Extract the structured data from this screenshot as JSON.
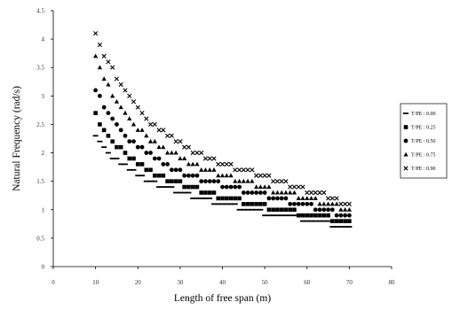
{
  "chart_data": {
    "type": "scatter",
    "title": "",
    "xlabel": "Length of free span (m)",
    "ylabel": "Natural Frequency (rad/s)",
    "xlim": [
      0,
      80
    ],
    "ylim": [
      0,
      4.5
    ],
    "xticks": [
      "0",
      "10",
      "20",
      "30",
      "40",
      "50",
      "60",
      "70",
      "80"
    ],
    "yticks": [
      "0",
      "0.5",
      "1",
      "1.5",
      "2",
      "2.5",
      "3",
      "3.5",
      "4",
      "4.5"
    ],
    "grid": false,
    "legend_position": "right",
    "x": [
      10,
      11,
      12,
      13,
      14,
      15,
      16,
      17,
      18,
      19,
      20,
      21,
      22,
      23,
      24,
      25,
      26,
      27,
      28,
      29,
      30,
      31,
      32,
      33,
      34,
      35,
      36,
      37,
      38,
      39,
      40,
      41,
      42,
      43,
      44,
      45,
      46,
      47,
      48,
      49,
      50,
      51,
      52,
      53,
      54,
      55,
      56,
      57,
      58,
      59,
      60,
      61,
      62,
      63,
      64,
      65,
      66,
      67,
      68,
      69,
      70
    ],
    "series": [
      {
        "name": "T/PE : 0.00",
        "marker": "dash",
        "values": [
          2.3,
          2.2,
          2.1,
          2.0,
          1.9,
          1.9,
          1.8,
          1.8,
          1.7,
          1.7,
          1.6,
          1.6,
          1.5,
          1.5,
          1.5,
          1.4,
          1.4,
          1.4,
          1.4,
          1.3,
          1.3,
          1.3,
          1.3,
          1.2,
          1.2,
          1.2,
          1.2,
          1.2,
          1.1,
          1.1,
          1.1,
          1.1,
          1.1,
          1.1,
          1.0,
          1.0,
          1.0,
          1.0,
          1.0,
          1.0,
          0.9,
          0.9,
          0.9,
          0.9,
          0.9,
          0.9,
          0.9,
          0.9,
          0.9,
          0.8,
          0.8,
          0.8,
          0.8,
          0.8,
          0.8,
          0.8,
          0.7,
          0.7,
          0.7,
          0.7,
          0.7
        ]
      },
      {
        "name": "T/PE : 0.25",
        "marker": "square",
        "values": [
          2.7,
          2.5,
          2.4,
          2.3,
          2.2,
          2.1,
          2.1,
          2.0,
          1.9,
          1.9,
          1.8,
          1.8,
          1.7,
          1.7,
          1.6,
          1.6,
          1.6,
          1.5,
          1.5,
          1.5,
          1.5,
          1.4,
          1.4,
          1.4,
          1.4,
          1.3,
          1.3,
          1.3,
          1.3,
          1.2,
          1.2,
          1.2,
          1.2,
          1.2,
          1.2,
          1.1,
          1.1,
          1.1,
          1.1,
          1.1,
          1.1,
          1.0,
          1.0,
          1.0,
          1.0,
          1.0,
          1.0,
          1.0,
          0.9,
          0.9,
          0.9,
          0.9,
          0.9,
          0.9,
          0.9,
          0.9,
          0.8,
          0.8,
          0.8,
          0.8,
          0.8
        ]
      },
      {
        "name": "T/PE : 0.50",
        "marker": "circle",
        "values": [
          3.1,
          3.0,
          2.8,
          2.7,
          2.6,
          2.5,
          2.4,
          2.3,
          2.2,
          2.2,
          2.1,
          2.1,
          2.0,
          2.0,
          1.9,
          1.9,
          1.8,
          1.8,
          1.7,
          1.7,
          1.7,
          1.6,
          1.6,
          1.6,
          1.6,
          1.5,
          1.5,
          1.5,
          1.5,
          1.5,
          1.4,
          1.4,
          1.4,
          1.4,
          1.4,
          1.3,
          1.3,
          1.3,
          1.3,
          1.3,
          1.3,
          1.2,
          1.2,
          1.2,
          1.2,
          1.2,
          1.1,
          1.1,
          1.1,
          1.1,
          1.1,
          1.1,
          1.0,
          1.0,
          1.0,
          1.0,
          1.0,
          0.9,
          0.9,
          0.9,
          0.9
        ]
      },
      {
        "name": "T/PE : 0.75",
        "marker": "triangle",
        "values": [
          3.7,
          3.5,
          3.3,
          3.2,
          3.0,
          2.9,
          2.8,
          2.7,
          2.6,
          2.5,
          2.4,
          2.4,
          2.3,
          2.2,
          2.2,
          2.1,
          2.1,
          2.0,
          2.0,
          2.0,
          1.9,
          1.9,
          1.8,
          1.8,
          1.8,
          1.7,
          1.7,
          1.7,
          1.7,
          1.6,
          1.6,
          1.6,
          1.6,
          1.5,
          1.5,
          1.5,
          1.5,
          1.5,
          1.4,
          1.4,
          1.4,
          1.4,
          1.3,
          1.3,
          1.3,
          1.3,
          1.3,
          1.3,
          1.2,
          1.2,
          1.2,
          1.2,
          1.2,
          1.1,
          1.1,
          1.1,
          1.1,
          1.1,
          1.0,
          1.0,
          1.0
        ]
      },
      {
        "name": "T/PE : 0.90",
        "marker": "x",
        "values": [
          4.1,
          3.9,
          3.7,
          3.6,
          3.5,
          3.3,
          3.2,
          3.1,
          3.0,
          2.9,
          2.8,
          2.7,
          2.6,
          2.5,
          2.5,
          2.4,
          2.4,
          2.3,
          2.3,
          2.2,
          2.2,
          2.1,
          2.1,
          2.0,
          2.0,
          2.0,
          1.9,
          1.9,
          1.9,
          1.8,
          1.8,
          1.8,
          1.8,
          1.7,
          1.7,
          1.7,
          1.7,
          1.7,
          1.6,
          1.6,
          1.6,
          1.6,
          1.5,
          1.5,
          1.5,
          1.5,
          1.4,
          1.4,
          1.4,
          1.4,
          1.3,
          1.3,
          1.3,
          1.3,
          1.3,
          1.2,
          1.2,
          1.2,
          1.1,
          1.1,
          1.1
        ]
      }
    ]
  }
}
